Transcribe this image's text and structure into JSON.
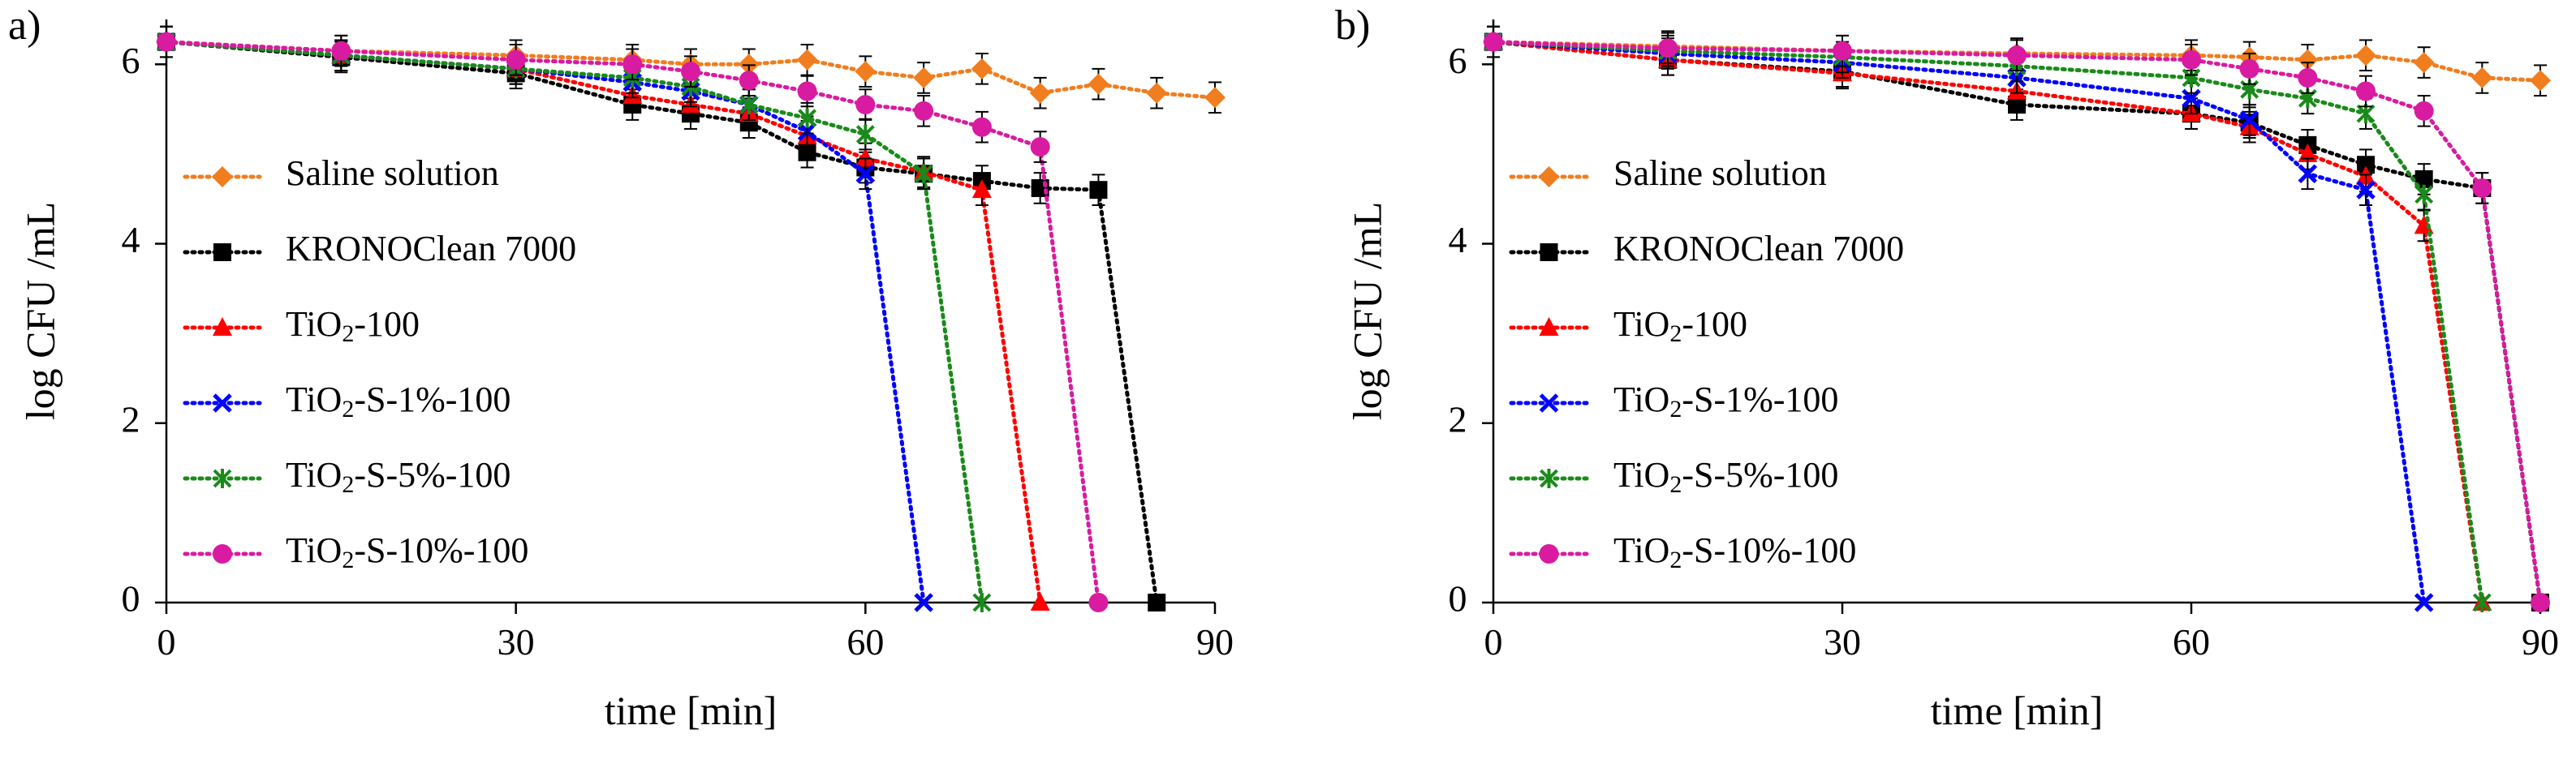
{
  "chart_data": [
    {
      "type": "line",
      "panel_label": "a)",
      "xlabel": "time [min]",
      "ylabel": "log CFU /mL",
      "xlim": [
        0,
        90
      ],
      "ylim": [
        0,
        6.5
      ],
      "x_ticks": [
        "0",
        "30",
        "60",
        "90"
      ],
      "y_ticks": [
        "0",
        "2",
        "4",
        "6"
      ],
      "series": [
        {
          "name": "Saline solution",
          "marker": "diamond",
          "color": "#f07d1e",
          "points": [
            [
              0,
              6.25
            ],
            [
              15,
              6.15
            ],
            [
              30,
              6.1
            ],
            [
              40,
              6.05
            ],
            [
              45,
              6.0
            ],
            [
              50,
              6.0
            ],
            [
              55,
              6.05
            ],
            [
              60,
              5.92
            ],
            [
              65,
              5.85
            ],
            [
              70,
              5.95
            ],
            [
              75,
              5.68
            ],
            [
              80,
              5.78
            ],
            [
              85,
              5.68
            ],
            [
              90,
              5.63
            ]
          ]
        },
        {
          "name": "KRONOClean 7000",
          "marker": "square",
          "color": "#000000",
          "points": [
            [
              0,
              6.25
            ],
            [
              15,
              6.08
            ],
            [
              30,
              5.9
            ],
            [
              40,
              5.55
            ],
            [
              45,
              5.45
            ],
            [
              50,
              5.35
            ],
            [
              55,
              5.02
            ],
            [
              60,
              4.85
            ],
            [
              65,
              4.78
            ],
            [
              70,
              4.7
            ],
            [
              75,
              4.62
            ],
            [
              80,
              4.6
            ],
            [
              85,
              0
            ]
          ]
        },
        {
          "name": "TiO2-100",
          "marker": "triangle",
          "color": "#ff0000",
          "points": [
            [
              0,
              6.25
            ],
            [
              15,
              6.1
            ],
            [
              30,
              5.95
            ],
            [
              40,
              5.65
            ],
            [
              45,
              5.55
            ],
            [
              50,
              5.45
            ],
            [
              55,
              5.2
            ],
            [
              60,
              4.95
            ],
            [
              65,
              4.8
            ],
            [
              70,
              4.6
            ],
            [
              75,
              0
            ]
          ]
        },
        {
          "name": "TiO2-S-1%-100",
          "marker": "x",
          "color": "#0000ff",
          "points": [
            [
              0,
              6.25
            ],
            [
              15,
              6.1
            ],
            [
              30,
              5.95
            ],
            [
              40,
              5.8
            ],
            [
              45,
              5.7
            ],
            [
              50,
              5.55
            ],
            [
              55,
              5.25
            ],
            [
              60,
              4.78
            ],
            [
              65,
              0
            ]
          ]
        },
        {
          "name": "TiO2-S-5%-100",
          "marker": "star",
          "color": "#1a8a1a",
          "points": [
            [
              0,
              6.25
            ],
            [
              15,
              6.1
            ],
            [
              30,
              5.95
            ],
            [
              40,
              5.85
            ],
            [
              45,
              5.75
            ],
            [
              50,
              5.55
            ],
            [
              55,
              5.4
            ],
            [
              60,
              5.22
            ],
            [
              65,
              4.78
            ],
            [
              70,
              0
            ]
          ]
        },
        {
          "name": "TiO2-S-10%-100",
          "marker": "circle",
          "color": "#d81ba0",
          "points": [
            [
              0,
              6.25
            ],
            [
              15,
              6.15
            ],
            [
              30,
              6.05
            ],
            [
              40,
              6.0
            ],
            [
              45,
              5.92
            ],
            [
              50,
              5.82
            ],
            [
              55,
              5.7
            ],
            [
              60,
              5.55
            ],
            [
              65,
              5.48
            ],
            [
              70,
              5.3
            ],
            [
              75,
              5.08
            ],
            [
              80,
              0
            ]
          ]
        }
      ]
    },
    {
      "type": "line",
      "panel_label": "b)",
      "xlabel": "time [min]",
      "ylabel": "log CFU /mL",
      "xlim": [
        0,
        90
      ],
      "ylim": [
        0,
        6.5
      ],
      "x_ticks": [
        "0",
        "30",
        "60",
        "90"
      ],
      "y_ticks": [
        "0",
        "2",
        "4",
        "6"
      ],
      "series": [
        {
          "name": "Saline solution",
          "marker": "diamond",
          "color": "#f07d1e",
          "points": [
            [
              0,
              6.25
            ],
            [
              15,
              6.2
            ],
            [
              30,
              6.15
            ],
            [
              45,
              6.12
            ],
            [
              60,
              6.1
            ],
            [
              65,
              6.08
            ],
            [
              70,
              6.05
            ],
            [
              75,
              6.1
            ],
            [
              80,
              6.02
            ],
            [
              85,
              5.85
            ],
            [
              90,
              5.82
            ]
          ]
        },
        {
          "name": "KRONOClean 7000",
          "marker": "square",
          "color": "#000000",
          "points": [
            [
              0,
              6.25
            ],
            [
              15,
              6.05
            ],
            [
              30,
              5.92
            ],
            [
              45,
              5.55
            ],
            [
              60,
              5.45
            ],
            [
              65,
              5.35
            ],
            [
              70,
              5.1
            ],
            [
              75,
              4.88
            ],
            [
              80,
              4.72
            ],
            [
              85,
              4.62
            ],
            [
              90,
              0
            ]
          ]
        },
        {
          "name": "TiO2-100",
          "marker": "triangle",
          "color": "#ff0000",
          "points": [
            [
              0,
              6.25
            ],
            [
              15,
              6.05
            ],
            [
              30,
              5.9
            ],
            [
              45,
              5.7
            ],
            [
              60,
              5.45
            ],
            [
              65,
              5.3
            ],
            [
              70,
              5.0
            ],
            [
              75,
              4.75
            ],
            [
              80,
              4.2
            ],
            [
              85,
              0
            ]
          ]
        },
        {
          "name": "TiO2-S-1%-100",
          "marker": "x",
          "color": "#0000ff",
          "points": [
            [
              0,
              6.25
            ],
            [
              15,
              6.12
            ],
            [
              30,
              6.02
            ],
            [
              45,
              5.85
            ],
            [
              60,
              5.62
            ],
            [
              65,
              5.38
            ],
            [
              70,
              4.78
            ],
            [
              75,
              4.6
            ],
            [
              80,
              0
            ]
          ]
        },
        {
          "name": "TiO2-S-5%-100",
          "marker": "star",
          "color": "#1a8a1a",
          "points": [
            [
              0,
              6.25
            ],
            [
              15,
              6.15
            ],
            [
              30,
              6.08
            ],
            [
              45,
              5.98
            ],
            [
              60,
              5.85
            ],
            [
              65,
              5.72
            ],
            [
              70,
              5.62
            ],
            [
              75,
              5.45
            ],
            [
              80,
              4.55
            ],
            [
              85,
              0
            ]
          ]
        },
        {
          "name": "TiO2-S-10%-100",
          "marker": "circle",
          "color": "#d81ba0",
          "points": [
            [
              0,
              6.25
            ],
            [
              15,
              6.18
            ],
            [
              30,
              6.15
            ],
            [
              45,
              6.1
            ],
            [
              60,
              6.05
            ],
            [
              65,
              5.95
            ],
            [
              70,
              5.85
            ],
            [
              75,
              5.7
            ],
            [
              80,
              5.48
            ],
            [
              85,
              4.62
            ],
            [
              90,
              0
            ]
          ]
        }
      ]
    }
  ]
}
